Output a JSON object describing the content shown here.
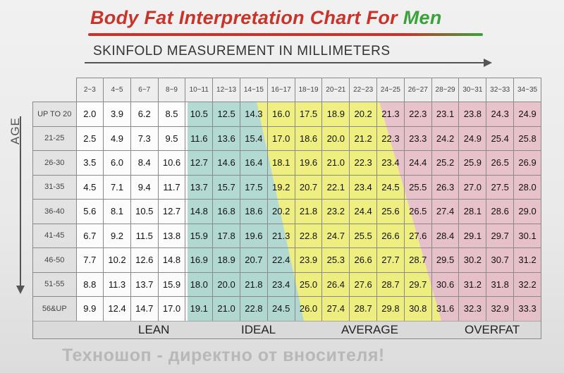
{
  "title": {
    "main": "Body Fat Interpretation Chart For ",
    "accent": "Men"
  },
  "axis": {
    "x_label": "SKINFOLD MEASUREMENT IN MILLIMETERS",
    "y_label": "AGE"
  },
  "columns": [
    "2~3",
    "4~5",
    "6~7",
    "8~9",
    "10~11",
    "12~13",
    "14~15",
    "16~17",
    "18~19",
    "20~21",
    "22~23",
    "24~25",
    "26~27",
    "28~29",
    "30~31",
    "32~33",
    "34~35"
  ],
  "rows": [
    {
      "age": "UP TO 20",
      "values": [
        "2.0",
        "3.9",
        "6.2",
        "8.5",
        "10.5",
        "12.5",
        "14.3",
        "16.0",
        "17.5",
        "18.9",
        "20.2",
        "21.3",
        "22.3",
        "23.1",
        "23.8",
        "24.3",
        "24.9"
      ]
    },
    {
      "age": "21-25",
      "values": [
        "2.5",
        "4.9",
        "7.3",
        "9.5",
        "11.6",
        "13.6",
        "15.4",
        "17.0",
        "18.6",
        "20.0",
        "21.2",
        "22.3",
        "23.3",
        "24.2",
        "24.9",
        "25.4",
        "25.8"
      ]
    },
    {
      "age": "26-30",
      "values": [
        "3.5",
        "6.0",
        "8.4",
        "10.6",
        "12.7",
        "14.6",
        "16.4",
        "18.1",
        "19.6",
        "21.0",
        "22.3",
        "23.4",
        "24.4",
        "25.2",
        "25.9",
        "26.5",
        "26.9"
      ]
    },
    {
      "age": "31-35",
      "values": [
        "4.5",
        "7.1",
        "9.4",
        "11.7",
        "13.7",
        "15.7",
        "17.5",
        "19.2",
        "20.7",
        "22.1",
        "23.4",
        "24.5",
        "25.5",
        "26.3",
        "27.0",
        "27.5",
        "28.0"
      ]
    },
    {
      "age": "36-40",
      "values": [
        "5.6",
        "8.1",
        "10.5",
        "12.7",
        "14.8",
        "16.8",
        "18.6",
        "20.2",
        "21.8",
        "23.2",
        "24.4",
        "25.6",
        "26.5",
        "27.4",
        "28.1",
        "28.6",
        "29.0"
      ]
    },
    {
      "age": "41-45",
      "values": [
        "6.7",
        "9.2",
        "11.5",
        "13.8",
        "15.9",
        "17.8",
        "19.6",
        "21.3",
        "22.8",
        "24.7",
        "25.5",
        "26.6",
        "27.6",
        "28.4",
        "29.1",
        "29.7",
        "30.1"
      ]
    },
    {
      "age": "46-50",
      "values": [
        "7.7",
        "10.2",
        "12.6",
        "14.8",
        "16.9",
        "18.9",
        "20.7",
        "22.4",
        "23.9",
        "25.3",
        "26.6",
        "27.7",
        "28.7",
        "29.5",
        "30.2",
        "30.7",
        "31.2"
      ]
    },
    {
      "age": "51-55",
      "values": [
        "8.8",
        "11.3",
        "13.7",
        "15.9",
        "18.0",
        "20.0",
        "21.8",
        "23.4",
        "25.0",
        "26.4",
        "27.6",
        "28.7",
        "29.7",
        "30.6",
        "31.2",
        "31.8",
        "32.2"
      ]
    },
    {
      "age": "56&UP",
      "values": [
        "9.9",
        "12.4",
        "14.7",
        "17.0",
        "19.1",
        "21.0",
        "22.8",
        "24.5",
        "26.0",
        "27.4",
        "28.7",
        "29.8",
        "30.8",
        "31.6",
        "32.3",
        "32.9",
        "33.3"
      ]
    }
  ],
  "categories": [
    {
      "label": "LEAN",
      "color": "#ffffff"
    },
    {
      "label": "IDEAL",
      "color": "#9fd3c9"
    },
    {
      "label": "AVERAGE",
      "color": "#f0f06e"
    },
    {
      "label": "OVERFAT",
      "color": "#e6b4bf"
    }
  ],
  "watermark": "Техношоп - директно от вносителя!"
}
